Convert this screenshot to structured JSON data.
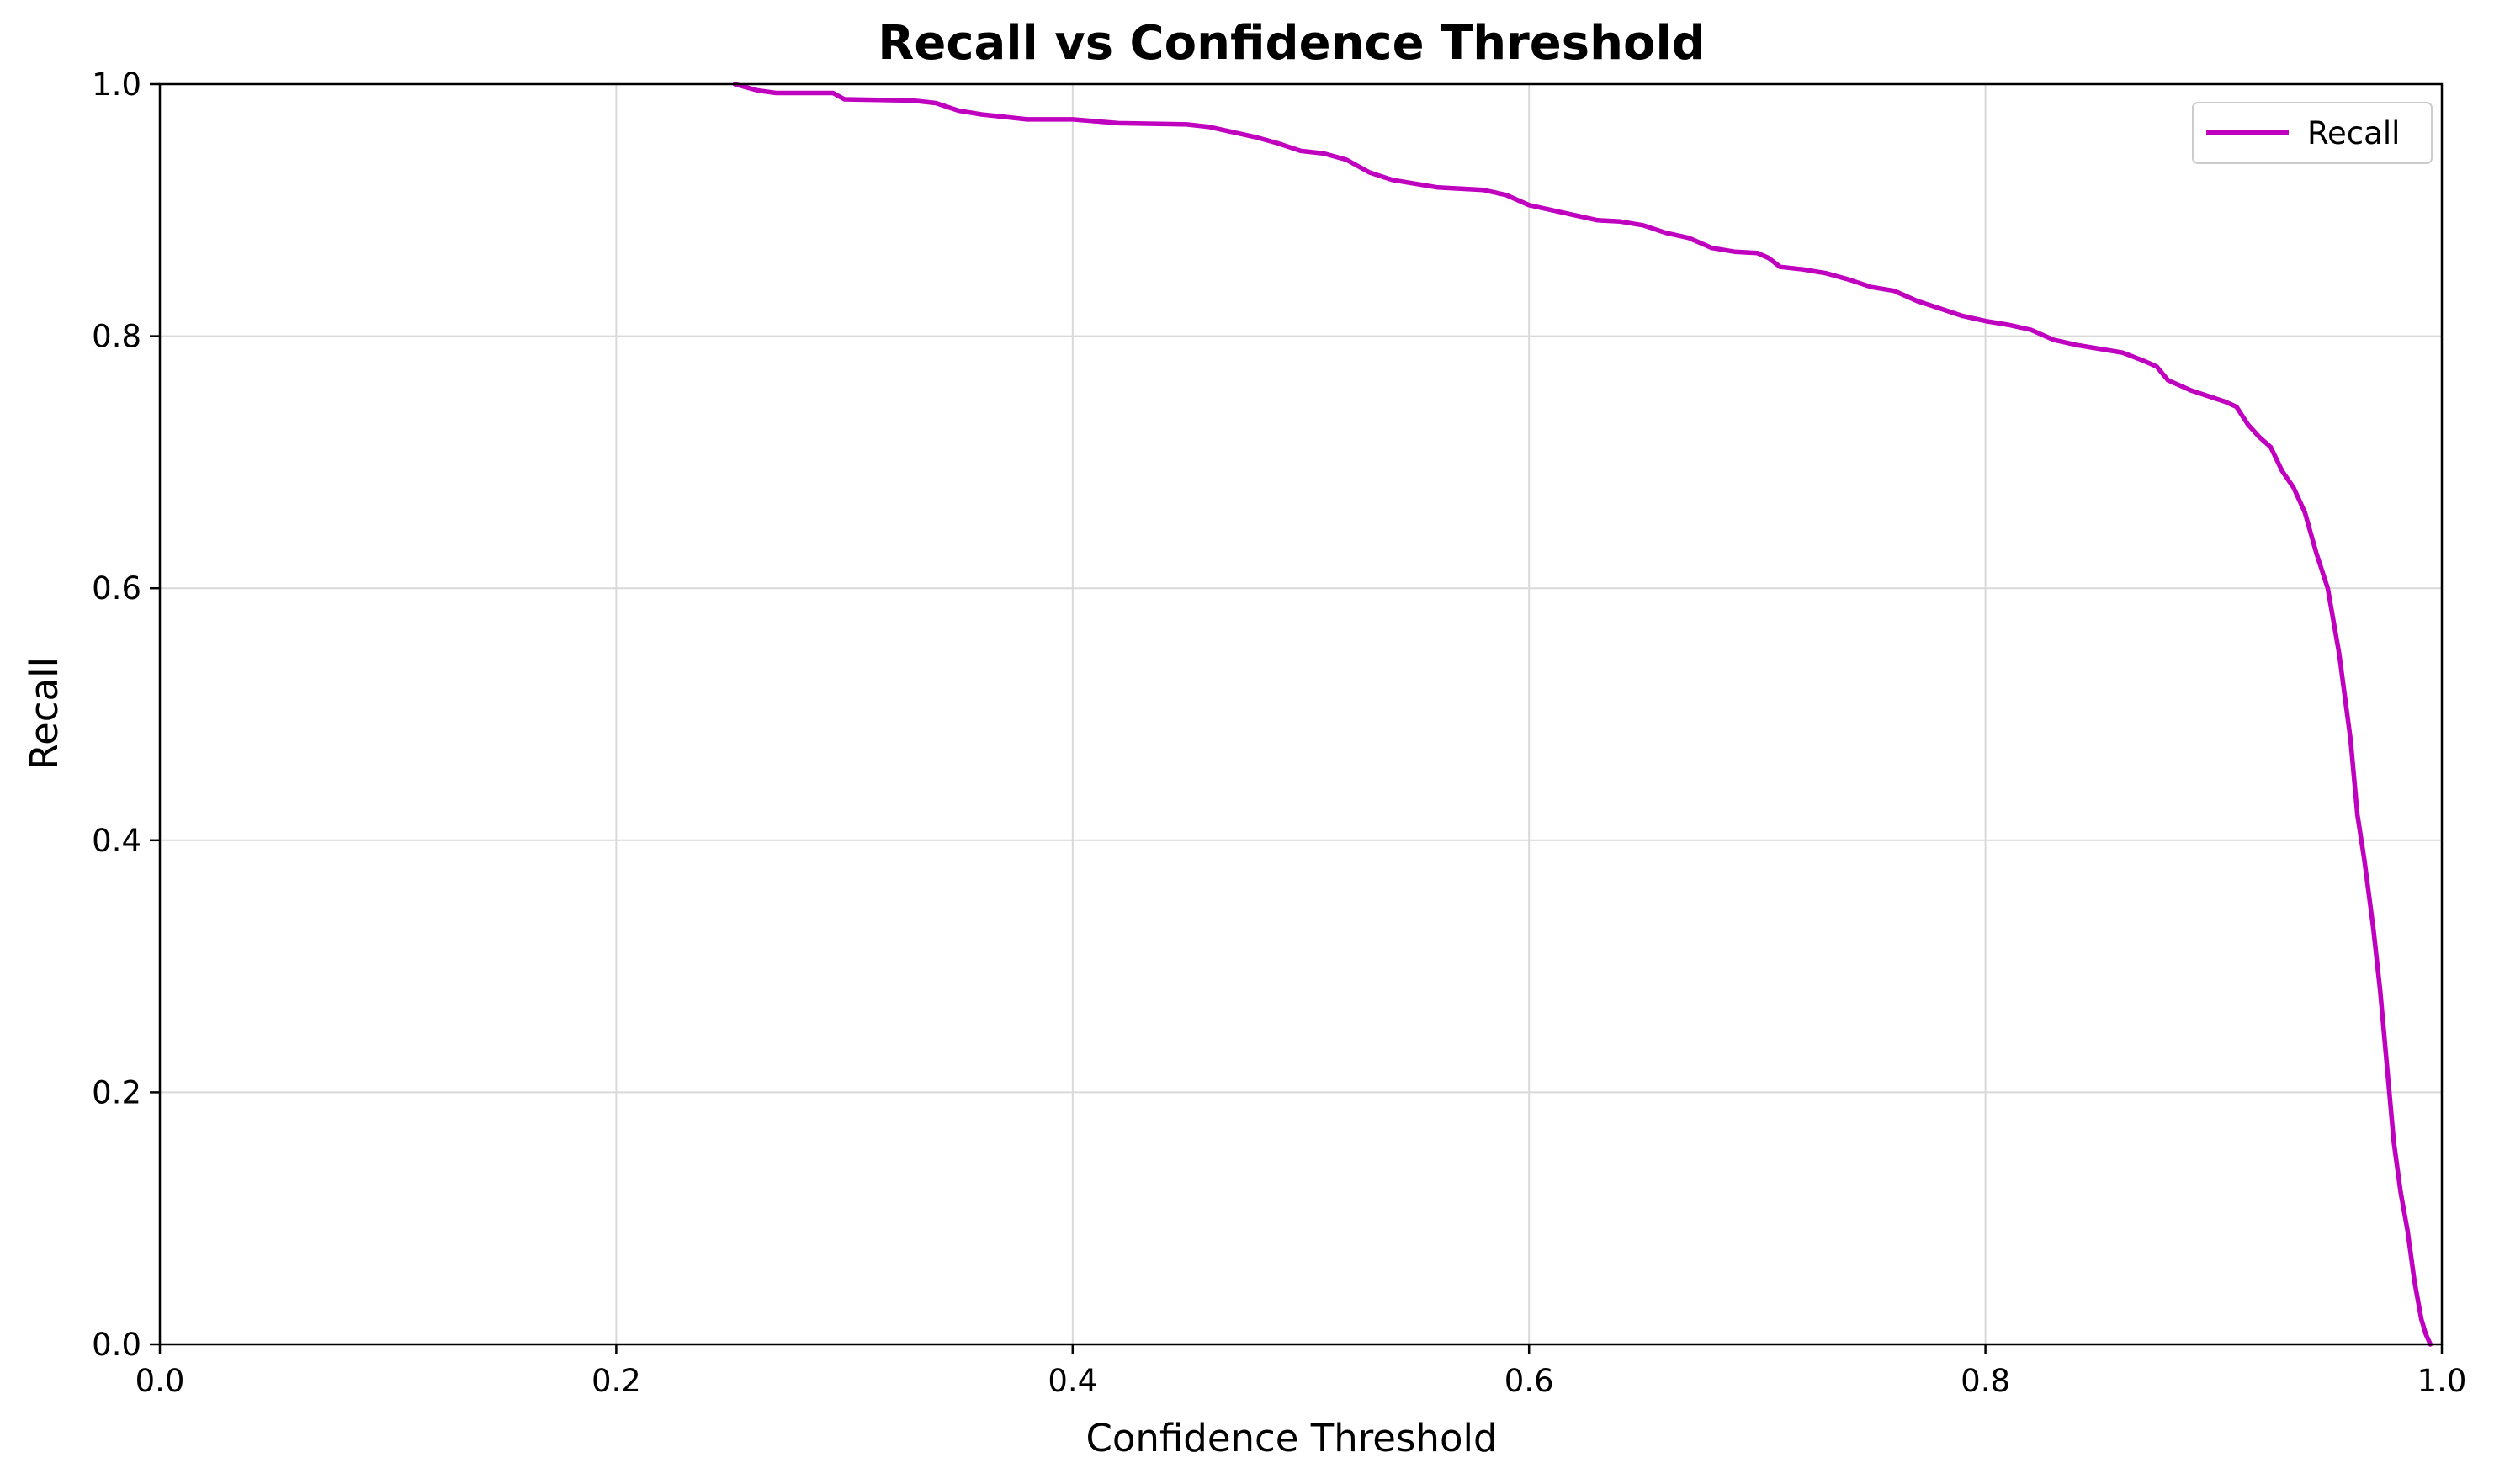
{
  "chart_data": {
    "type": "line",
    "title": "Recall vs Confidence Threshold",
    "xlabel": "Confidence Threshold",
    "ylabel": "Recall",
    "xlim": [
      0.0,
      1.0
    ],
    "ylim": [
      0.0,
      1.0
    ],
    "xticks": [
      "0.0",
      "0.2",
      "0.4",
      "0.6",
      "0.8",
      "1.0"
    ],
    "yticks": [
      "0.0",
      "0.2",
      "0.4",
      "0.6",
      "0.8",
      "1.0"
    ],
    "grid": true,
    "legend_position": "top-right",
    "series": [
      {
        "name": "Recall",
        "color": "#bf00bf",
        "x": [
          0.252,
          0.262,
          0.27,
          0.295,
          0.3,
          0.33,
          0.34,
          0.35,
          0.36,
          0.37,
          0.38,
          0.4,
          0.42,
          0.45,
          0.46,
          0.47,
          0.48,
          0.49,
          0.5,
          0.51,
          0.52,
          0.53,
          0.54,
          0.55,
          0.56,
          0.58,
          0.59,
          0.6,
          0.61,
          0.62,
          0.63,
          0.64,
          0.65,
          0.66,
          0.67,
          0.68,
          0.69,
          0.7,
          0.705,
          0.71,
          0.72,
          0.73,
          0.74,
          0.75,
          0.76,
          0.77,
          0.78,
          0.79,
          0.8,
          0.81,
          0.82,
          0.83,
          0.84,
          0.85,
          0.86,
          0.87,
          0.875,
          0.88,
          0.89,
          0.9,
          0.905,
          0.91,
          0.915,
          0.92,
          0.925,
          0.93,
          0.935,
          0.94,
          0.945,
          0.95,
          0.955,
          0.96,
          0.963,
          0.966,
          0.97,
          0.973,
          0.976,
          0.979,
          0.982,
          0.985,
          0.988,
          0.991,
          0.993,
          0.995
        ],
        "y": [
          1.0,
          0.995,
          0.993,
          0.993,
          0.988,
          0.987,
          0.985,
          0.979,
          0.976,
          0.974,
          0.972,
          0.972,
          0.969,
          0.968,
          0.966,
          0.962,
          0.958,
          0.953,
          0.947,
          0.945,
          0.94,
          0.93,
          0.924,
          0.921,
          0.918,
          0.916,
          0.912,
          0.904,
          0.9,
          0.896,
          0.892,
          0.891,
          0.888,
          0.882,
          0.878,
          0.87,
          0.867,
          0.866,
          0.862,
          0.855,
          0.853,
          0.85,
          0.845,
          0.839,
          0.836,
          0.828,
          0.822,
          0.816,
          0.812,
          0.809,
          0.805,
          0.797,
          0.793,
          0.79,
          0.787,
          0.78,
          0.776,
          0.765,
          0.757,
          0.751,
          0.748,
          0.744,
          0.73,
          0.72,
          0.712,
          0.693,
          0.68,
          0.66,
          0.628,
          0.6,
          0.548,
          0.48,
          0.42,
          0.385,
          0.33,
          0.28,
          0.22,
          0.16,
          0.12,
          0.09,
          0.05,
          0.02,
          0.008,
          0.0
        ]
      }
    ]
  }
}
